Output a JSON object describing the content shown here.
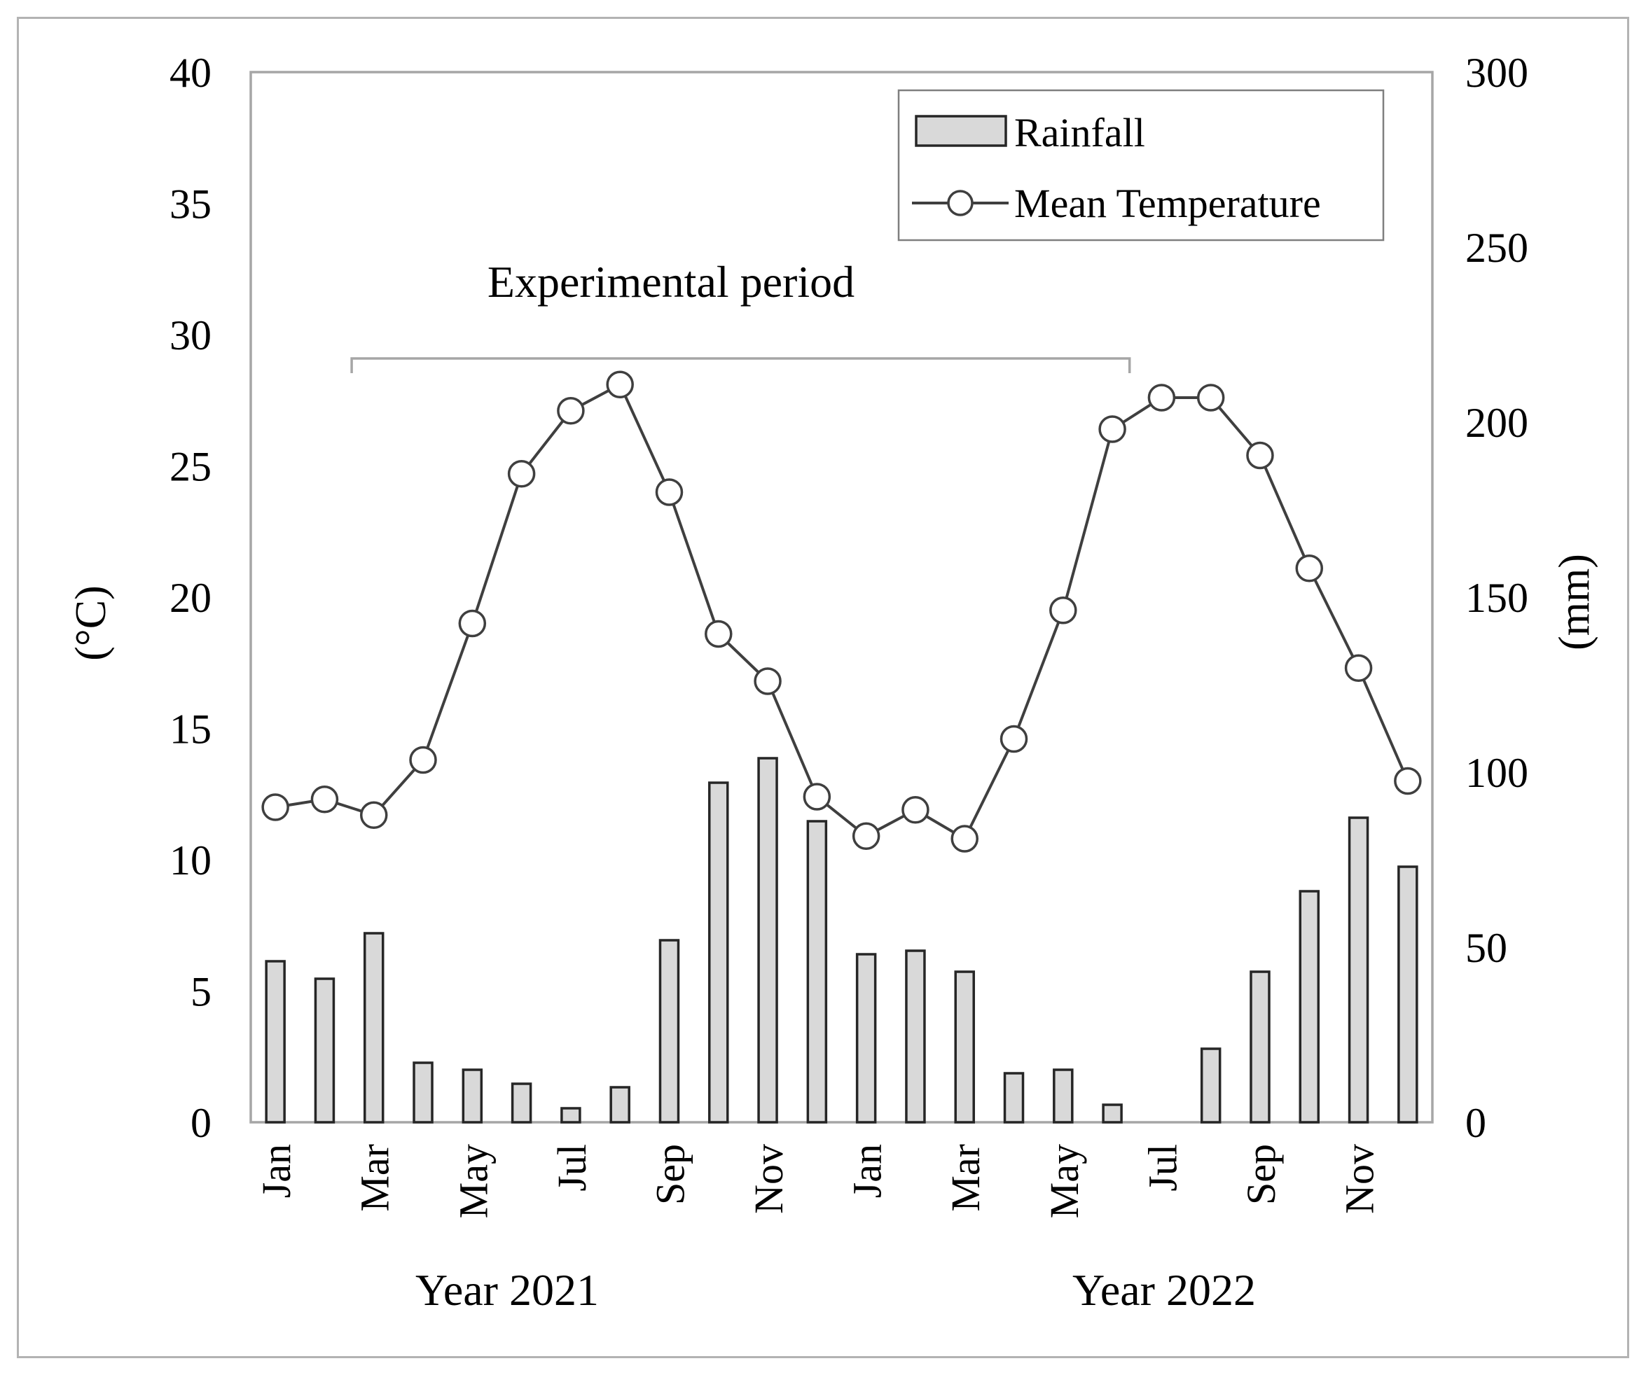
{
  "figure": {
    "type_note": "climate diagram, monthly rainfall bars and mean temperature line over two years"
  },
  "chart_data": {
    "type": "combo",
    "categories": [
      "Jan",
      "Feb",
      "Mar",
      "Apr",
      "May",
      "Jun",
      "Jul",
      "Aug",
      "Sep",
      "Oct",
      "Nov",
      "Dec",
      "Jan",
      "Feb",
      "Mar",
      "Apr",
      "May",
      "Jun",
      "Jul",
      "Aug",
      "Sep",
      "Oct",
      "Nov",
      "Dec"
    ],
    "x_tick_labels": [
      "Jan",
      "Mar",
      "May",
      "Jul",
      "Sep",
      "Nov",
      "Jan",
      "Mar",
      "May",
      "Jul",
      "Sep",
      "Nov"
    ],
    "x_tick_label_indices": [
      0,
      2,
      4,
      6,
      8,
      10,
      12,
      14,
      16,
      18,
      20,
      22
    ],
    "category_groups": [
      {
        "label": "Year 2021",
        "span": 12
      },
      {
        "label": "Year 2022",
        "span": 12
      }
    ],
    "series": [
      {
        "name": "Rainfall",
        "type": "bar",
        "y_axis": "right",
        "unit": "mm",
        "values": [
          46,
          41,
          54,
          17,
          15,
          11,
          4,
          10,
          52,
          97,
          104,
          86,
          48,
          49,
          43,
          14,
          15,
          5,
          0,
          21,
          43,
          66,
          87,
          73
        ]
      },
      {
        "name": "Mean Temperature",
        "type": "line",
        "y_axis": "left",
        "unit": "°C",
        "values": [
          12.0,
          12.3,
          11.7,
          13.8,
          19.0,
          24.7,
          27.1,
          28.1,
          24.0,
          18.6,
          16.8,
          12.4,
          10.9,
          11.9,
          10.8,
          14.6,
          19.5,
          26.4,
          27.6,
          27.6,
          25.4,
          21.1,
          17.3,
          13.0
        ]
      }
    ],
    "left_axis": {
      "title": "(°C)",
      "min": 0,
      "max": 40,
      "tick_step": 5
    },
    "right_axis": {
      "title": "(mm)",
      "min": 0,
      "max": 300,
      "tick_step": 50
    },
    "annotation": {
      "label": "Experimental period",
      "start_category_index": 2.05,
      "end_category_index": 17.85
    },
    "legend": {
      "position": "top-right",
      "border": true
    },
    "grid": "off",
    "colors": {
      "bar_fill": "#d9d9d9",
      "bar_stroke": "#262626",
      "line": "#3f3f3f",
      "marker_fill": "#ffffff",
      "frame": "#a6a6a6",
      "bracket": "#a6a6a6",
      "legend_border": "#7f7f7f",
      "outer_border": "#b3b3b3",
      "text": "#000000"
    }
  }
}
